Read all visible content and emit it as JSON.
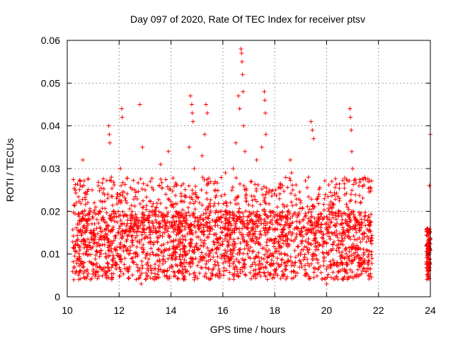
{
  "chart_data": {
    "type": "scatter",
    "title": "Day 097 of 2020, Rate Of TEC Index for receiver ptsv",
    "xlabel": "GPS time / hours",
    "ylabel": "ROTI / TECUs",
    "xlim": [
      10,
      24
    ],
    "ylim": [
      0,
      0.06
    ],
    "x_ticks": [
      "10",
      "12",
      "14",
      "16",
      "18",
      "20",
      "22",
      "24"
    ],
    "y_ticks": [
      "0",
      "0.01",
      "0.02",
      "0.03",
      "0.04",
      "0.05",
      "0.06"
    ],
    "grid": true,
    "legend": "none",
    "marker": "plus",
    "marker_color": "#ff0000",
    "series": [
      {
        "points": [
          [
            10.25,
            0.004
          ],
          [
            10.3,
            0.012
          ],
          [
            10.35,
            0.022
          ],
          [
            10.4,
            0.009
          ],
          [
            10.45,
            0.017
          ],
          [
            10.5,
            0.027
          ],
          [
            10.55,
            0.013
          ],
          [
            10.6,
            0.032
          ],
          [
            10.65,
            0.008
          ],
          [
            10.7,
            0.019
          ],
          [
            10.75,
            0.024
          ],
          [
            10.8,
            0.011
          ],
          [
            10.9,
            0.015
          ],
          [
            11.0,
            0.006
          ],
          [
            11.1,
            0.021
          ],
          [
            11.2,
            0.026
          ],
          [
            11.3,
            0.01
          ],
          [
            11.4,
            0.018
          ],
          [
            11.5,
            0.014
          ],
          [
            11.6,
            0.04
          ],
          [
            11.62,
            0.038
          ],
          [
            11.64,
            0.036
          ],
          [
            11.7,
            0.028
          ],
          [
            11.8,
            0.009
          ],
          [
            11.9,
            0.023
          ],
          [
            12.0,
            0.016
          ],
          [
            12.05,
            0.03
          ],
          [
            12.1,
            0.044
          ],
          [
            12.12,
            0.042
          ],
          [
            12.2,
            0.012
          ],
          [
            12.3,
            0.022
          ],
          [
            12.4,
            0.007
          ],
          [
            12.5,
            0.019
          ],
          [
            12.6,
            0.025
          ],
          [
            12.7,
            0.013
          ],
          [
            12.8,
            0.045
          ],
          [
            12.85,
            0.003
          ],
          [
            12.9,
            0.035
          ],
          [
            13.0,
            0.018
          ],
          [
            13.1,
            0.008
          ],
          [
            13.2,
            0.027
          ],
          [
            13.3,
            0.015
          ],
          [
            13.4,
            0.02
          ],
          [
            13.5,
            0.011
          ],
          [
            13.6,
            0.031
          ],
          [
            13.7,
            0.006
          ],
          [
            13.8,
            0.024
          ],
          [
            13.9,
            0.034
          ],
          [
            14.0,
            0.013
          ],
          [
            14.1,
            0.021
          ],
          [
            14.2,
            0.009
          ],
          [
            14.3,
            0.017
          ],
          [
            14.4,
            0.026
          ],
          [
            14.5,
            0.012
          ],
          [
            14.6,
            0.019
          ],
          [
            14.7,
            0.035
          ],
          [
            14.75,
            0.047
          ],
          [
            14.8,
            0.045
          ],
          [
            14.82,
            0.043
          ],
          [
            14.85,
            0.041
          ],
          [
            14.9,
            0.03
          ],
          [
            15.0,
            0.014
          ],
          [
            15.1,
            0.022
          ],
          [
            15.2,
            0.033
          ],
          [
            15.3,
            0.038
          ],
          [
            15.35,
            0.045
          ],
          [
            15.4,
            0.043
          ],
          [
            15.5,
            0.016
          ],
          [
            15.6,
            0.011
          ],
          [
            15.7,
            0.025
          ],
          [
            15.8,
            0.008
          ],
          [
            15.9,
            0.02
          ],
          [
            16.0,
            0.013
          ],
          [
            16.1,
            0.029
          ],
          [
            16.2,
            0.018
          ],
          [
            16.3,
            0.01
          ],
          [
            16.4,
            0.03
          ],
          [
            16.5,
            0.036
          ],
          [
            16.6,
            0.047
          ],
          [
            16.65,
            0.044
          ],
          [
            16.7,
            0.058
          ],
          [
            16.72,
            0.057
          ],
          [
            16.74,
            0.055
          ],
          [
            16.76,
            0.052
          ],
          [
            16.78,
            0.048
          ],
          [
            16.8,
            0.04
          ],
          [
            16.85,
            0.034
          ],
          [
            16.9,
            0.024
          ],
          [
            17.0,
            0.015
          ],
          [
            17.1,
            0.027
          ],
          [
            17.2,
            0.009
          ],
          [
            17.3,
            0.032
          ],
          [
            17.4,
            0.019
          ],
          [
            17.5,
            0.035
          ],
          [
            17.6,
            0.048
          ],
          [
            17.62,
            0.046
          ],
          [
            17.64,
            0.043
          ],
          [
            17.66,
            0.038
          ],
          [
            17.7,
            0.012
          ],
          [
            17.8,
            0.025
          ],
          [
            17.9,
            0.017
          ],
          [
            18.0,
            0.006
          ],
          [
            18.1,
            0.021
          ],
          [
            18.2,
            0.014
          ],
          [
            18.3,
            0.026
          ],
          [
            18.4,
            0.01
          ],
          [
            18.5,
            0.018
          ],
          [
            18.6,
            0.032
          ],
          [
            18.65,
            0.029
          ],
          [
            18.7,
            0.025
          ],
          [
            18.8,
            0.008
          ],
          [
            18.9,
            0.016
          ],
          [
            19.0,
            0.022
          ],
          [
            19.1,
            0.011
          ],
          [
            19.2,
            0.019
          ],
          [
            19.3,
            0.028
          ],
          [
            19.4,
            0.041
          ],
          [
            19.45,
            0.039
          ],
          [
            19.5,
            0.037
          ],
          [
            19.6,
            0.013
          ],
          [
            19.7,
            0.024
          ],
          [
            19.8,
            0.017
          ],
          [
            19.9,
            0.009
          ],
          [
            20.0,
            0.003
          ],
          [
            20.1,
            0.02
          ],
          [
            20.2,
            0.027
          ],
          [
            20.3,
            0.015
          ],
          [
            20.4,
            0.012
          ],
          [
            20.5,
            0.023
          ],
          [
            20.6,
            0.018
          ],
          [
            20.7,
            0.006
          ],
          [
            20.8,
            0.021
          ],
          [
            20.9,
            0.044
          ],
          [
            20.92,
            0.042
          ],
          [
            20.95,
            0.039
          ],
          [
            20.97,
            0.034
          ],
          [
            21.0,
            0.03
          ],
          [
            21.1,
            0.016
          ],
          [
            21.2,
            0.011
          ],
          [
            21.3,
            0.022
          ],
          [
            21.4,
            0.008
          ],
          [
            21.5,
            0.019
          ],
          [
            21.6,
            0.027
          ],
          [
            21.7,
            0.013
          ],
          [
            21.75,
            0.009
          ],
          [
            23.9,
            0.006
          ],
          [
            23.92,
            0.012
          ],
          [
            23.94,
            0.015
          ],
          [
            23.96,
            0.026
          ],
          [
            23.98,
            0.008
          ],
          [
            24.0,
            0.038
          ]
        ]
      }
    ]
  }
}
